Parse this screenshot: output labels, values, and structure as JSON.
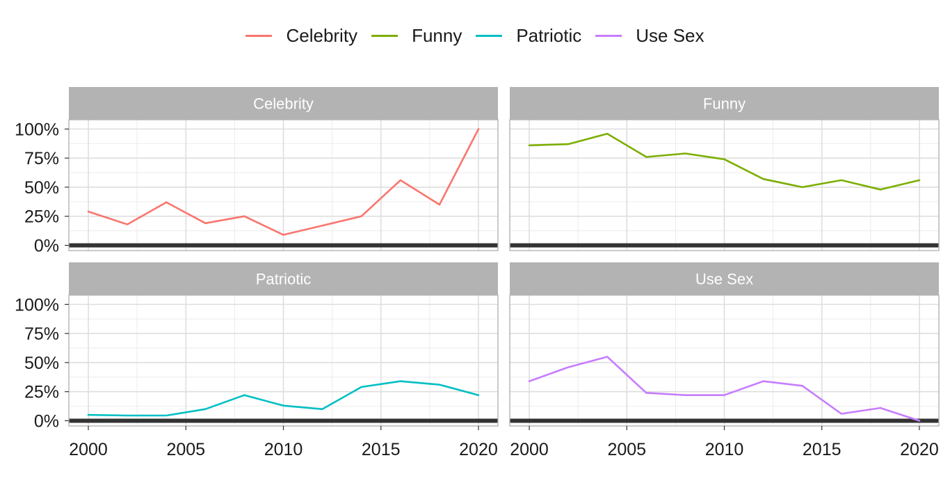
{
  "chart_data": {
    "type": "line",
    "layout": "facet-grid-2x2",
    "legend_position": "top",
    "x_ticks": [
      2000,
      2005,
      2010,
      2015,
      2020
    ],
    "y_ticks": [
      "0%",
      "25%",
      "50%",
      "75%",
      "100%"
    ],
    "ylim": [
      0,
      100
    ],
    "xlim": [
      2000,
      2020
    ],
    "grid": true,
    "series": [
      {
        "name": "Celebrity",
        "color": "#F8766D",
        "x": [
          2000,
          2002,
          2004,
          2006,
          2008,
          2010,
          2012,
          2014,
          2016,
          2018,
          2020
        ],
        "values": [
          29,
          18,
          37,
          19,
          25,
          9,
          17,
          25,
          56,
          35,
          100
        ]
      },
      {
        "name": "Funny",
        "color": "#7CAE00",
        "x": [
          2000,
          2002,
          2004,
          2006,
          2008,
          2010,
          2012,
          2014,
          2016,
          2018,
          2020
        ],
        "values": [
          86,
          87,
          96,
          76,
          79,
          74,
          57,
          50,
          56,
          48,
          56
        ]
      },
      {
        "name": "Patriotic",
        "color": "#00BFC4",
        "x": [
          2000,
          2002,
          2004,
          2006,
          2008,
          2010,
          2012,
          2014,
          2016,
          2018,
          2020
        ],
        "values": [
          5,
          4.5,
          4.5,
          10,
          22,
          13,
          10,
          29,
          34,
          31,
          22
        ]
      },
      {
        "name": "Use Sex",
        "color": "#C77CFF",
        "x": [
          2000,
          2002,
          2004,
          2006,
          2008,
          2010,
          2012,
          2014,
          2016,
          2018,
          2020
        ],
        "values": [
          34,
          46,
          55,
          24,
          22,
          22,
          34,
          30,
          6,
          11,
          0
        ]
      }
    ]
  }
}
